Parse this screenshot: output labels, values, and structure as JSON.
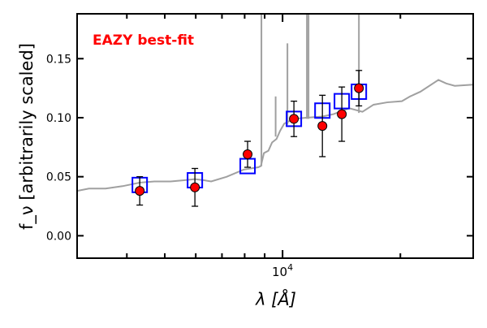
{
  "chart_data": {
    "type": "scatter",
    "title": "",
    "annotation": "EAZY best-fit",
    "xlabel": "λ [Å]",
    "ylabel": "f_ν [arbitrarily scaled]",
    "xscale": "log",
    "xlim": [
      2985,
      30700
    ],
    "ylim": [
      -0.019,
      0.188
    ],
    "yticks": [
      0.0,
      0.05,
      0.1,
      0.15
    ],
    "ytick_labels": [
      "0.00",
      "0.05",
      "0.10",
      "0.15"
    ],
    "xtick_major": 10000,
    "xtick_label": {
      "base": "10",
      "exp": "4"
    },
    "xtick_minor": [
      4000,
      5000,
      6000,
      7000,
      8000,
      9000,
      20000
    ],
    "grid": false,
    "colors": {
      "spectrum": "#a0a0a0",
      "model": "#0000ff",
      "observed": "#ff0000",
      "error": "#000000",
      "annotation": "#ff0000"
    },
    "series": [
      {
        "name": "best-fit template spectrum",
        "type": "line",
        "x": [
          2985,
          3200,
          3530,
          3900,
          4315,
          4700,
          5175,
          5600,
          5970,
          6300,
          6570,
          7200,
          7950,
          8665,
          8800,
          8960,
          9200,
          9400,
          9650,
          9860,
          10100,
          10690,
          11500,
          12640,
          13500,
          14800,
          16000,
          17080,
          18500,
          20180,
          21170,
          22500,
          25020,
          26200,
          27540,
          30700
        ],
        "y": [
          0.038,
          0.04,
          0.04,
          0.042,
          0.045,
          0.046,
          0.046,
          0.047,
          0.048,
          0.047,
          0.046,
          0.05,
          0.056,
          0.058,
          0.059,
          0.07,
          0.072,
          0.079,
          0.082,
          0.089,
          0.095,
          0.099,
          0.1,
          0.101,
          0.103,
          0.108,
          0.105,
          0.111,
          0.113,
          0.114,
          0.118,
          0.122,
          0.132,
          0.129,
          0.127,
          0.128
        ]
      },
      {
        "name": "emission lines",
        "type": "lines",
        "x": [
          8830,
          9600,
          10290,
          11540,
          11650,
          15670
        ],
        "base": [
          0.059,
          0.084,
          0.094,
          0.099,
          0.099,
          0.104
        ],
        "peak": [
          0.25,
          0.118,
          0.163,
          0.25,
          0.25,
          0.25
        ]
      },
      {
        "name": "model photometry",
        "type": "scatter",
        "marker": "square",
        "x": [
          4315,
          5970,
          8140,
          10690,
          12640,
          14170,
          15670
        ],
        "y": [
          0.043,
          0.047,
          0.059,
          0.099,
          0.106,
          0.114,
          0.122
        ]
      },
      {
        "name": "observed photometry",
        "type": "scatter",
        "marker": "circle",
        "x": [
          4315,
          5970,
          8140,
          10690,
          12640,
          14170,
          15670
        ],
        "y": [
          0.038,
          0.041,
          0.069,
          0.099,
          0.093,
          0.103,
          0.125
        ],
        "yerr": [
          0.012,
          0.016,
          0.011,
          0.015,
          0.026,
          0.023,
          0.015
        ]
      }
    ]
  }
}
